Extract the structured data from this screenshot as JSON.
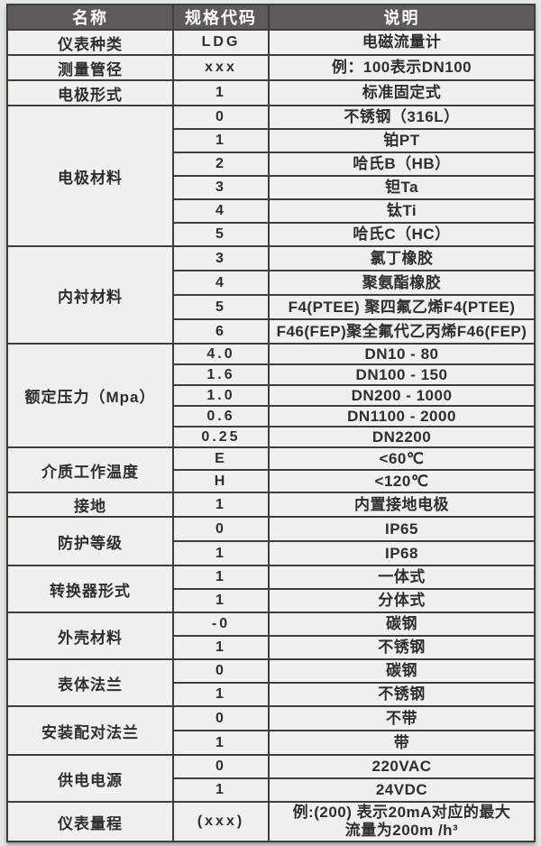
{
  "table": {
    "headers": [
      "名称",
      "规格代码",
      "说明"
    ],
    "colors": {
      "header_bg": "#5e5a5a",
      "header_text": "#ffffff",
      "body_bg": "#eef1ed",
      "border": "#3e3e3e",
      "text": "#2e2e2e"
    },
    "groups": [
      {
        "name": "仪表种类",
        "rows": [
          {
            "code": "LDG",
            "desc": "电磁流量计"
          }
        ]
      },
      {
        "name": "测量管径",
        "rows": [
          {
            "code": "xxx",
            "desc": "例：100表示DN100"
          }
        ]
      },
      {
        "name": "电极形式",
        "rows": [
          {
            "code": "1",
            "desc": "标准固定式"
          }
        ]
      },
      {
        "name": "电极材料",
        "rows": [
          {
            "code": "0",
            "desc": "不锈钢（316L）"
          },
          {
            "code": "1",
            "desc": "铂PT"
          },
          {
            "code": "2",
            "desc": "哈氏B（HB）"
          },
          {
            "code": "3",
            "desc": "钽Ta"
          },
          {
            "code": "4",
            "desc": "钛Ti"
          },
          {
            "code": "5",
            "desc": "哈氏C（HC）"
          }
        ]
      },
      {
        "name": "内衬材料",
        "rows": [
          {
            "code": "3",
            "desc": "氯丁橡胶"
          },
          {
            "code": "4",
            "desc": "聚氨酯橡胶"
          },
          {
            "code": "5",
            "desc": "F4(PTEE) 聚四氟乙烯F4(PTEE)"
          },
          {
            "code": "6",
            "desc": "F46(FEP)聚全氟代乙丙烯F46(FEP)"
          }
        ]
      },
      {
        "name": "额定压力（Mpa）",
        "rows": [
          {
            "code": "4.0",
            "desc": "DN10 - 80"
          },
          {
            "code": "1.6",
            "desc": "DN100 - 150"
          },
          {
            "code": "1.0",
            "desc": "DN200 - 1000"
          },
          {
            "code": "0.6",
            "desc": "DN1100 - 2000"
          },
          {
            "code": "0.25",
            "desc": "DN2200"
          }
        ]
      },
      {
        "name": "介质工作温度",
        "rows": [
          {
            "code": "E",
            "desc": "<60℃"
          },
          {
            "code": "H",
            "desc": "<120℃"
          }
        ]
      },
      {
        "name": "接地",
        "rows": [
          {
            "code": "1",
            "desc": "内置接地电极"
          }
        ]
      },
      {
        "name": "防护等级",
        "rows": [
          {
            "code": "0",
            "desc": "IP65"
          },
          {
            "code": "1",
            "desc": "IP68"
          }
        ]
      },
      {
        "name": "转换器形式",
        "rows": [
          {
            "code": "1",
            "desc": "一体式"
          },
          {
            "code": "1",
            "desc": "分体式"
          }
        ]
      },
      {
        "name": "外壳材料",
        "rows": [
          {
            "code": "-0",
            "desc": "碳钢"
          },
          {
            "code": "1",
            "desc": "不锈钢"
          }
        ]
      },
      {
        "name": "表体法兰",
        "rows": [
          {
            "code": "0",
            "desc": "碳钢"
          },
          {
            "code": "1",
            "desc": "不锈钢"
          }
        ]
      },
      {
        "name": "安装配对法兰",
        "rows": [
          {
            "code": "0",
            "desc": "不带"
          },
          {
            "code": "1",
            "desc": "带"
          }
        ]
      },
      {
        "name": "供电电源",
        "rows": [
          {
            "code": "0",
            "desc": "220VAC"
          },
          {
            "code": "1",
            "desc": "24VDC"
          }
        ]
      },
      {
        "name": "仪表量程",
        "rows": [
          {
            "code": "(xxx)",
            "desc": "例:(200) 表示20mA对应的最大",
            "desc2": "流量为200m /h³"
          }
        ]
      }
    ]
  }
}
